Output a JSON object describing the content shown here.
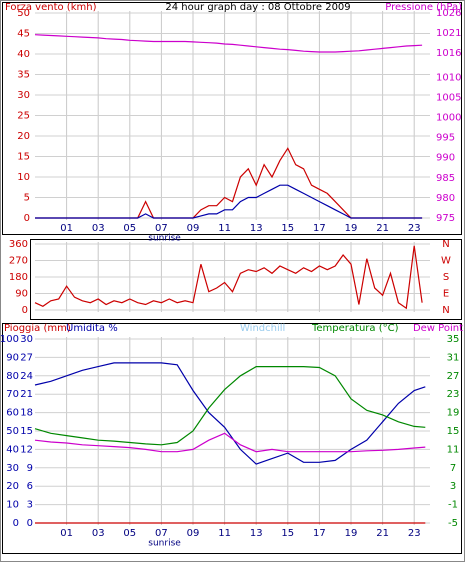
{
  "chart_data": [
    {
      "type": "line",
      "title": "24 hour graph day : 08 Ottobre 2009",
      "header": [
        {
          "text": "Forza vento (kmh)",
          "color": "#cc0000"
        },
        {
          "text": "24 hour graph day : 08 Ottobre 2009",
          "color": "#000000"
        },
        {
          "text": "Pressione (hPa)",
          "color": "#cc00cc"
        }
      ],
      "xlim": [
        -1,
        24
      ],
      "xticks": [
        {
          "value": 1,
          "label": "01"
        },
        {
          "value": 3,
          "label": "03"
        },
        {
          "value": 5,
          "label": "05"
        },
        {
          "value": 7,
          "label": "07"
        },
        {
          "value": 9,
          "label": "09"
        },
        11,
        13,
        15,
        17,
        19,
        21,
        23
      ],
      "xtick_labels": true,
      "ylim": [
        0,
        50
      ],
      "yticks": [
        0,
        5,
        10,
        15,
        20,
        25,
        30,
        35,
        40,
        45,
        50
      ],
      "ytick_color": "#cc0000",
      "y2lim": [
        975,
        1026
      ],
      "y2ticks": [
        975,
        980,
        985,
        990,
        995,
        1000,
        1005,
        1010,
        1016,
        1021,
        1026
      ],
      "y2tick_color": "#cc00cc",
      "grid": true,
      "annotations": [
        {
          "text": "sunrise",
          "x": 7.2
        }
      ],
      "x": [
        -1,
        -0.5,
        0,
        0.5,
        1,
        1.5,
        2,
        2.5,
        3,
        3.5,
        4,
        4.5,
        5,
        5.5,
        6,
        6.5,
        7,
        7.5,
        8,
        8.5,
        9,
        9.5,
        10,
        10.5,
        11,
        11.5,
        12,
        12.5,
        13,
        13.5,
        14,
        14.5,
        15,
        15.5,
        16,
        16.5,
        17,
        17.5,
        18,
        18.5,
        19,
        19.5,
        20,
        20.5,
        21,
        21.5,
        22,
        22.5,
        23,
        23.5
      ],
      "series": [
        {
          "color": "#cc0000",
          "values": [
            0,
            0,
            0,
            0,
            0,
            0,
            0,
            0,
            0,
            0,
            0,
            0,
            0,
            0,
            4,
            0,
            0,
            0,
            0,
            0,
            0,
            2,
            3,
            3,
            5,
            4,
            10,
            12,
            8,
            13,
            10,
            14,
            17,
            13,
            12,
            8,
            7,
            6,
            4,
            2,
            0,
            0,
            0,
            0,
            0,
            0,
            0,
            0,
            0,
            0
          ]
        },
        {
          "color": "#0000aa",
          "values": [
            0,
            0,
            0,
            0,
            0,
            0,
            0,
            0,
            0,
            0,
            0,
            0,
            0,
            0,
            1,
            0,
            0,
            0,
            0,
            0,
            0,
            0.5,
            1,
            1,
            2,
            2,
            4,
            5,
            5,
            6,
            7,
            8,
            8,
            7,
            6,
            5,
            4,
            3,
            2,
            1,
            0,
            0,
            0,
            0,
            0,
            0,
            0,
            0,
            0,
            0
          ]
        },
        {
          "color": "#cc00cc",
          "axis": "y2",
          "values": [
            1020.6,
            1020.5,
            1020.4,
            1020.3,
            1020.2,
            1020.1,
            1020,
            1019.9,
            1019.8,
            1019.6,
            1019.5,
            1019.4,
            1019.2,
            1019.1,
            1019,
            1018.9,
            1018.9,
            1018.9,
            1018.9,
            1018.9,
            1018.8,
            1018.7,
            1018.6,
            1018.5,
            1018.3,
            1018.2,
            1018,
            1017.8,
            1017.6,
            1017.4,
            1017.2,
            1017,
            1016.9,
            1016.7,
            1016.5,
            1016.4,
            1016.3,
            1016.3,
            1016.3,
            1016.4,
            1016.5,
            1016.6,
            1016.8,
            1017,
            1017.2,
            1017.4,
            1017.6,
            1017.8,
            1017.9,
            1018
          ]
        }
      ]
    },
    {
      "type": "line",
      "xlim": [
        -1,
        24
      ],
      "xticks": [
        {
          "value": 1,
          "label": "01"
        },
        {
          "value": 3,
          "label": "03"
        },
        {
          "value": 5,
          "label": "05"
        },
        {
          "value": 7,
          "label": "07"
        },
        {
          "value": 9,
          "label": "09"
        },
        11,
        13,
        15,
        17,
        19,
        21,
        23
      ],
      "xtick_labels": false,
      "ylim": [
        0,
        360
      ],
      "yticks": [
        0,
        90,
        180,
        270,
        360
      ],
      "ytick_color": "#cc0000",
      "y2lim": [
        0,
        360
      ],
      "y2ticks": [
        {
          "value": 0,
          "label": "N"
        },
        {
          "value": 90,
          "label": "E"
        },
        {
          "value": 180,
          "label": "S"
        },
        {
          "value": 270,
          "label": "W"
        },
        {
          "value": 360,
          "label": "N"
        }
      ],
      "y2tick_color": "#cc0000",
      "grid": true,
      "x": [
        -1,
        -0.5,
        0,
        0.5,
        1,
        1.5,
        2,
        2.5,
        3,
        3.5,
        4,
        4.5,
        5,
        5.5,
        6,
        6.5,
        7,
        7.5,
        8,
        8.5,
        9,
        9.5,
        10,
        10.5,
        11,
        11.5,
        12,
        12.5,
        13,
        13.5,
        14,
        14.5,
        15,
        15.5,
        16,
        16.5,
        17,
        17.5,
        18,
        18.5,
        19,
        19.5,
        20,
        20.5,
        21,
        21.5,
        22,
        22.5,
        23,
        23.5
      ],
      "series": [
        {
          "color": "#cc0000",
          "values": [
            40,
            20,
            50,
            60,
            130,
            70,
            50,
            40,
            60,
            30,
            50,
            40,
            60,
            40,
            30,
            50,
            40,
            60,
            40,
            50,
            40,
            250,
            100,
            120,
            150,
            100,
            200,
            220,
            210,
            230,
            200,
            240,
            220,
            200,
            230,
            210,
            240,
            220,
            240,
            300,
            250,
            30,
            280,
            120,
            80,
            200,
            40,
            10,
            350,
            40
          ]
        }
      ]
    },
    {
      "type": "line",
      "header": [
        {
          "text": "Pioggia (mm)",
          "color": "#cc0000"
        },
        {
          "text": "Umidita %",
          "color": "#0000aa"
        },
        {
          "text": "Windchill",
          "color": "#99ccee"
        },
        {
          "text": "Temperatura (°C)",
          "color": "#008800"
        },
        {
          "text": "Dew Point",
          "color": "#cc00cc"
        }
      ],
      "xlim": [
        -1,
        24
      ],
      "xticks": [
        {
          "value": 1,
          "label": "01"
        },
        {
          "value": 3,
          "label": "03"
        },
        {
          "value": 5,
          "label": "05"
        },
        {
          "value": 7,
          "label": "07"
        },
        {
          "value": 9,
          "label": "09"
        },
        11,
        13,
        15,
        17,
        19,
        21,
        23
      ],
      "xtick_labels": true,
      "ylim": [
        0,
        100
      ],
      "yticks": [
        0,
        10,
        20,
        30,
        40,
        50,
        60,
        70,
        80,
        90,
        100
      ],
      "ytick_color": "#0000aa",
      "y3lim": [
        0,
        30
      ],
      "y3ticks": [
        0,
        3,
        6,
        9,
        12,
        15,
        18,
        21,
        24,
        27,
        30
      ],
      "y3tick_color": "#0000aa",
      "y2lim": [
        -5,
        35
      ],
      "y2ticks": [
        -5,
        -1,
        3,
        7,
        11,
        15,
        19,
        23,
        27,
        31,
        35
      ],
      "y2tick_color": "#008800",
      "grid": true,
      "annotations": [
        {
          "text": "sunrise",
          "x": 7.2
        }
      ],
      "x": [
        -1,
        0,
        1,
        2,
        3,
        4,
        5,
        6,
        7,
        8,
        9,
        10,
        11,
        12,
        13,
        14,
        15,
        16,
        17,
        18,
        19,
        20,
        21,
        22,
        23,
        23.7
      ],
      "series": [
        {
          "color": "#0000aa",
          "values": [
            75,
            77,
            80,
            83,
            85,
            87,
            87,
            87,
            87,
            86,
            72,
            60,
            52,
            40,
            32,
            35,
            38,
            33,
            33,
            34,
            40,
            45,
            55,
            65,
            72,
            74
          ]
        },
        {
          "color": "#008800",
          "axis": "y2",
          "values": [
            15.5,
            14.5,
            14,
            13.5,
            13,
            12.8,
            12.5,
            12.2,
            12,
            12.5,
            15,
            20,
            24,
            27,
            29,
            29,
            29,
            29,
            28.8,
            27,
            22,
            19.5,
            18.5,
            17,
            16,
            15.8
          ]
        },
        {
          "color": "#cc00cc",
          "axis": "y2",
          "values": [
            13,
            12.6,
            12.4,
            12,
            11.8,
            11.6,
            11.4,
            11,
            10.5,
            10.5,
            11,
            13,
            14.5,
            12,
            10.5,
            11,
            10.5,
            10.5,
            10.5,
            10.5,
            10.5,
            10.7,
            10.8,
            11,
            11.3,
            11.5
          ]
        },
        {
          "color": "#cc0000",
          "axis": "y3",
          "values": [
            0,
            0,
            0,
            0,
            0,
            0,
            0,
            0,
            0,
            0,
            0,
            0,
            0,
            0,
            0,
            0,
            0,
            0,
            0,
            0,
            0,
            0,
            0,
            0,
            0,
            0
          ]
        }
      ]
    }
  ]
}
